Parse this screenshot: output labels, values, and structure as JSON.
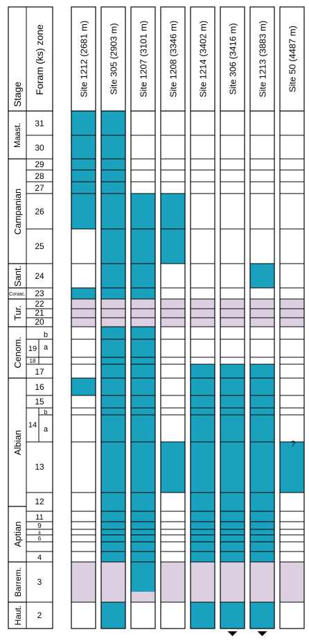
{
  "header": {
    "stage_label": "Stage",
    "zone_label": "Foram (ks) zone"
  },
  "colors": {
    "blue": "#1aa1bd",
    "lavender": "#dccfe2",
    "line": "#000000",
    "background": "#ffffff"
  },
  "stages": [
    "Maast.",
    "Campanian",
    "Sant.",
    "Coniac.",
    "Tur.",
    "Cenom.",
    "Albian",
    "Aptian",
    "Barrem.",
    "Haut."
  ],
  "zones": [
    "31",
    "30",
    "29",
    "28",
    "27",
    "26",
    "25",
    "24",
    "23",
    "22",
    "21",
    "20",
    "19",
    "b",
    "a",
    "18",
    "17",
    "16",
    "15",
    "14",
    "b",
    "a",
    "13",
    "12",
    "11",
    "9",
    "8",
    "6",
    "4",
    "3",
    "2"
  ],
  "question_mark": "?",
  "sites": [
    {
      "label": "Site 1212 (2681 m)",
      "fill": "partial",
      "pattern": "blue: zones 31 through 26, zone 23, zone 16; lavender: zones 22-20 and zone 3"
    },
    {
      "label": "Site 305 (2903 m)",
      "fill": "continuous",
      "pattern": "blue: zones 31 through 2 except lavender zones 22-20 and zone 3"
    },
    {
      "label": "Site 1207 (3101 m)",
      "fill": "partial",
      "pattern": "blue: zones 26 through 3; lavender: zones 22-20 and base of zone 3"
    },
    {
      "label": "Site 1208 (3346 m)",
      "fill": "partial",
      "pattern": "blue: zones 26-25 and zone 13; lavender: zones 22-20 and zone 3"
    },
    {
      "label": "Site 1214 (3402 m)",
      "fill": "partial",
      "pattern": "blue: zones 17 through 4; lavender: zones 22-20 and zone 3"
    },
    {
      "label": "Site 306 (3416 m)",
      "fill": "partial",
      "pattern": "blue: zones 17 through 2; lavender: zones 22-20 and zone 3"
    },
    {
      "label": "Site 1213 (3883 m)",
      "fill": "partial",
      "pattern": "blue: zone 24 and zones 17 through 2; lavender: zones 22-20 and zone 3"
    },
    {
      "label": "Site 50 (4487 m)",
      "fill": "partial",
      "pattern": "blue: zone 13 (queried); lavender: zones 22-20 and zone 3"
    }
  ]
}
